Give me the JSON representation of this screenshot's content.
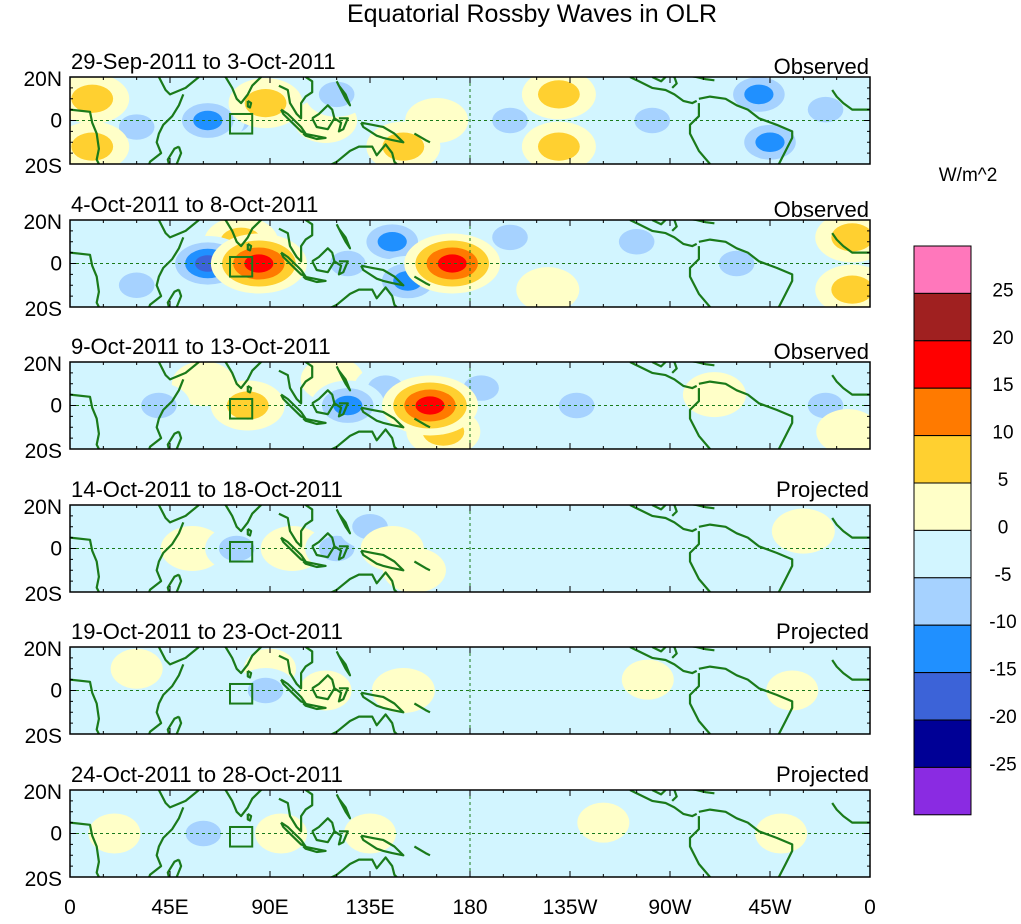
{
  "chart_data": {
    "type": "heatmap",
    "title": "Equatorial Rossby Waves in OLR",
    "units": "W/m^2",
    "x_tick_labels": [
      "0",
      "45E",
      "90E",
      "135E",
      "180",
      "135W",
      "90W",
      "45W",
      "0"
    ],
    "y_tick_labels": [
      "20N",
      "0",
      "20S"
    ],
    "colorbar": {
      "levels": [
        "25",
        "20",
        "15",
        "10",
        "5",
        "0",
        "-5",
        "-10",
        "-15",
        "-20",
        "-25"
      ],
      "colors": [
        "#ff77bb",
        "#a02020",
        "#ff0000",
        "#ff7a00",
        "#ffd030",
        "#ffffc8",
        "#d2f5ff",
        "#a6d2ff",
        "#2090ff",
        "#3c63d8",
        "#000096",
        "#8a2be2"
      ]
    },
    "panels": [
      {
        "period": "29-Sep-2011 to 3-Oct-2011",
        "status": "Observed",
        "anomalies": [
          {
            "lon": 10,
            "lat": 10,
            "value": 10
          },
          {
            "lon": 10,
            "lat": -12,
            "value": 10
          },
          {
            "lon": 30,
            "lat": -3,
            "value": -5
          },
          {
            "lon": 62,
            "lat": 0,
            "value": -10
          },
          {
            "lon": 73,
            "lat": 0,
            "value": -5
          },
          {
            "lon": 88,
            "lat": 8,
            "value": 10
          },
          {
            "lon": 115,
            "lat": 0,
            "value": 5
          },
          {
            "lon": 120,
            "lat": 12,
            "value": -5
          },
          {
            "lon": 150,
            "lat": -12,
            "value": 10
          },
          {
            "lon": 165,
            "lat": 0,
            "value": 5
          },
          {
            "lon": 220,
            "lat": 12,
            "value": 10
          },
          {
            "lon": 220,
            "lat": -12,
            "value": 10
          },
          {
            "lon": 198,
            "lat": 0,
            "value": -5
          },
          {
            "lon": 262,
            "lat": 0,
            "value": -5
          },
          {
            "lon": 310,
            "lat": 12,
            "value": -10
          },
          {
            "lon": 315,
            "lat": -10,
            "value": -10
          },
          {
            "lon": 340,
            "lat": 5,
            "value": -5
          }
        ]
      },
      {
        "period": "4-Oct-2011 to 8-Oct-2011",
        "status": "Observed",
        "anomalies": [
          {
            "lon": 62,
            "lat": 0,
            "value": -15
          },
          {
            "lon": 85,
            "lat": 0,
            "value": 20
          },
          {
            "lon": 77,
            "lat": 10,
            "value": 10
          },
          {
            "lon": 30,
            "lat": -10,
            "value": -5
          },
          {
            "lon": 125,
            "lat": 0,
            "value": -5
          },
          {
            "lon": 145,
            "lat": 10,
            "value": -10
          },
          {
            "lon": 152,
            "lat": -8,
            "value": -10
          },
          {
            "lon": 172,
            "lat": 0,
            "value": 20
          },
          {
            "lon": 198,
            "lat": 12,
            "value": -5
          },
          {
            "lon": 215,
            "lat": -12,
            "value": 5
          },
          {
            "lon": 255,
            "lat": 10,
            "value": -5
          },
          {
            "lon": 300,
            "lat": 0,
            "value": -5
          },
          {
            "lon": 352,
            "lat": 12,
            "value": 10
          },
          {
            "lon": 352,
            "lat": -12,
            "value": 10
          }
        ]
      },
      {
        "period": "9-Oct-2011 to 13-Oct-2011",
        "status": "Observed",
        "anomalies": [
          {
            "lon": 60,
            "lat": 10,
            "value": 5
          },
          {
            "lon": 80,
            "lat": 0,
            "value": 10
          },
          {
            "lon": 40,
            "lat": 0,
            "value": -5
          },
          {
            "lon": 118,
            "lat": 12,
            "value": 5
          },
          {
            "lon": 125,
            "lat": 0,
            "value": -10
          },
          {
            "lon": 142,
            "lat": 8,
            "value": -5
          },
          {
            "lon": 162,
            "lat": 0,
            "value": 20
          },
          {
            "lon": 168,
            "lat": -12,
            "value": 10
          },
          {
            "lon": 185,
            "lat": 8,
            "value": -5
          },
          {
            "lon": 228,
            "lat": 0,
            "value": -5
          },
          {
            "lon": 290,
            "lat": 5,
            "value": 5
          },
          {
            "lon": 340,
            "lat": 0,
            "value": -5
          },
          {
            "lon": 350,
            "lat": -12,
            "value": 5
          }
        ]
      },
      {
        "period": "14-Oct-2011 to 18-Oct-2011",
        "status": "Projected",
        "anomalies": [
          {
            "lon": 55,
            "lat": 0,
            "value": 5
          },
          {
            "lon": 75,
            "lat": 0,
            "value": -5
          },
          {
            "lon": 100,
            "lat": 0,
            "value": 5
          },
          {
            "lon": 120,
            "lat": 0,
            "value": -5
          },
          {
            "lon": 135,
            "lat": 10,
            "value": -5
          },
          {
            "lon": 145,
            "lat": 0,
            "value": 5
          },
          {
            "lon": 155,
            "lat": -10,
            "value": 5
          },
          {
            "lon": 330,
            "lat": 8,
            "value": 5
          }
        ]
      },
      {
        "period": "19-Oct-2011 to 23-Oct-2011",
        "status": "Projected",
        "anomalies": [
          {
            "lon": 30,
            "lat": 10,
            "value": 0
          },
          {
            "lon": 90,
            "lat": 10,
            "value": 0
          },
          {
            "lon": 88,
            "lat": 0,
            "value": -5
          },
          {
            "lon": 115,
            "lat": 0,
            "value": 0
          },
          {
            "lon": 150,
            "lat": 0,
            "value": 5
          },
          {
            "lon": 260,
            "lat": 5,
            "value": 0
          },
          {
            "lon": 325,
            "lat": 0,
            "value": 0
          }
        ]
      },
      {
        "period": "24-Oct-2011 to 28-Oct-2011",
        "status": "Projected",
        "anomalies": [
          {
            "lon": 20,
            "lat": 0,
            "value": 0
          },
          {
            "lon": 60,
            "lat": 0,
            "value": -5
          },
          {
            "lon": 95,
            "lat": 0,
            "value": 0
          },
          {
            "lon": 135,
            "lat": 0,
            "value": 0
          },
          {
            "lon": 240,
            "lat": 5,
            "value": 0
          },
          {
            "lon": 320,
            "lat": 0,
            "value": 0
          }
        ]
      }
    ]
  }
}
